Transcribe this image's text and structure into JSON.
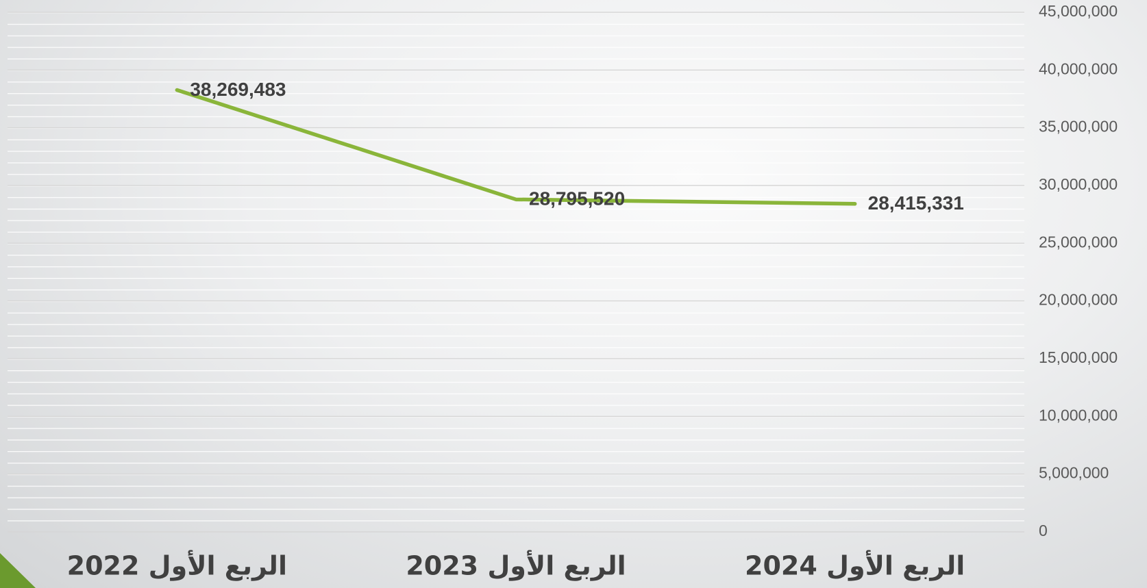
{
  "chart_data": {
    "type": "line",
    "categories": [
      "الربع الأول 2022",
      "الربع الأول 2023",
      "الربع الأول 2024"
    ],
    "values": [
      38269483,
      28795520,
      28415331
    ],
    "value_labels": [
      "38,269,483",
      "28,795,520",
      "28,415,331"
    ],
    "color": "#8ab53a",
    "ylim": [
      0,
      45000000
    ],
    "yticks": [
      0,
      {
        "value": 5000000,
        "label": "5,000,000"
      },
      {
        "value": 10000000,
        "label": "10,000,000"
      },
      {
        "value": 15000000,
        "label": "15,000,000"
      },
      {
        "value": 20000000,
        "label": "20,000,000"
      },
      {
        "value": 25000000,
        "label": "25,000,000"
      },
      {
        "value": 30000000,
        "label": "30,000,000"
      },
      {
        "value": 35000000,
        "label": "35,000,000"
      },
      {
        "value": 40000000,
        "label": "40,000,000"
      },
      {
        "value": 45000000,
        "label": "45,000,000"
      }
    ],
    "grid": true
  }
}
